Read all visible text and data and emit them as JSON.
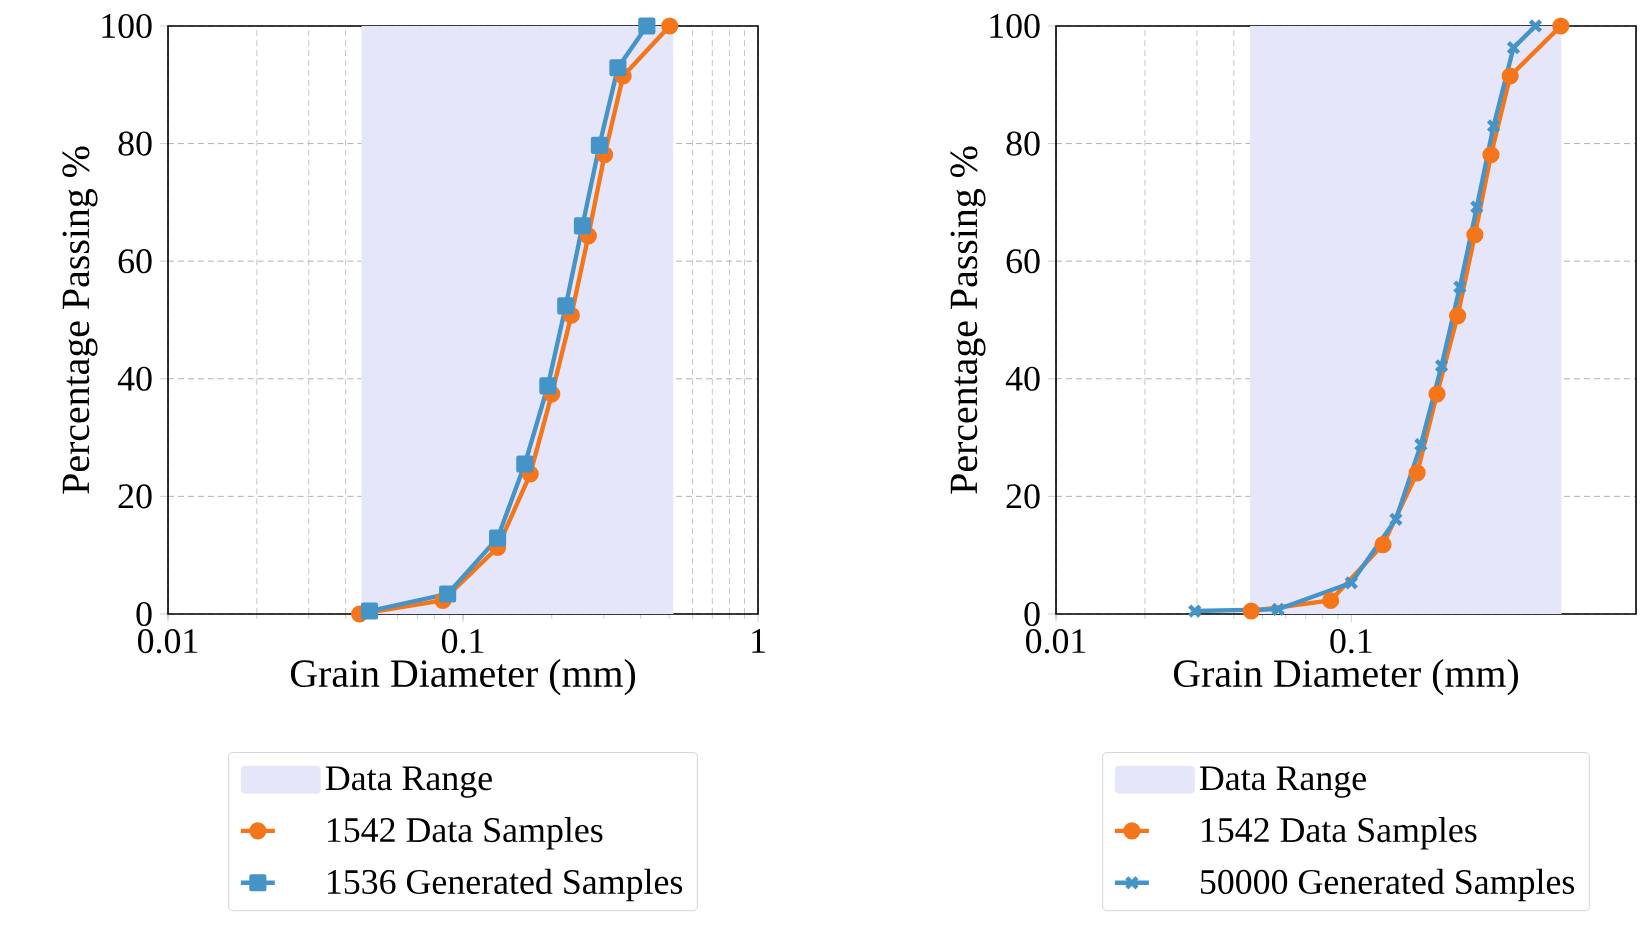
{
  "chart_data": [
    {
      "type": "line",
      "xlabel": "Grain Diameter (mm)",
      "ylabel": "Percentage Passing %",
      "log": "x",
      "grid": true,
      "legend": "bottom",
      "xlim": [
        0.01,
        1
      ],
      "xticks": [
        0.01,
        0.1,
        1
      ],
      "ylim": [
        0,
        100
      ],
      "yticks": [
        0,
        20,
        40,
        60,
        80,
        100
      ],
      "bands": [
        {
          "axis": "x",
          "from": 0.0453,
          "to": 0.516,
          "label": "Data Range",
          "color": "#e6e6fa"
        }
      ],
      "series": [
        {
          "name": "1542 Data Samples",
          "color": "#f5761a",
          "marker": "circle",
          "x": [
            0.0446,
            0.0855,
            0.131,
            0.169,
            0.2,
            0.233,
            0.266,
            0.302,
            0.349,
            0.502
          ],
          "values": [
            0,
            2.3,
            11.3,
            23.8,
            37.4,
            50.8,
            64.3,
            78.1,
            91.5,
            100
          ]
        },
        {
          "name": "1536 Generated Samples",
          "color": "#4594c8",
          "marker": "square",
          "x": [
            0.0482,
            0.0887,
            0.131,
            0.162,
            0.194,
            0.223,
            0.254,
            0.29,
            0.335,
            0.42
          ],
          "values": [
            0.5,
            3.4,
            12.9,
            25.5,
            38.8,
            52.4,
            66,
            79.7,
            92.9,
            100
          ]
        }
      ]
    },
    {
      "type": "line",
      "xlabel": "Grain Diameter (mm)",
      "ylabel": "Percentage Passing %",
      "log": "x",
      "grid": true,
      "legend": "bottom",
      "xlim": [
        0.01,
        0.92
      ],
      "xticks": [
        0.01,
        0.1
      ],
      "ylim": [
        0,
        100
      ],
      "yticks": [
        0,
        20,
        40,
        60,
        80,
        100
      ],
      "bands": [
        {
          "axis": "x",
          "from": 0.0454,
          "to": 0.514,
          "label": "Data Range",
          "color": "#e6e6fa"
        }
      ],
      "series": [
        {
          "name": "1542 Data Samples",
          "color": "#f5761a",
          "marker": "circle",
          "x": [
            0.0458,
            0.0851,
            0.128,
            0.167,
            0.195,
            0.229,
            0.262,
            0.297,
            0.345,
            0.512
          ],
          "values": [
            0.5,
            2.3,
            11.8,
            24,
            37.4,
            50.7,
            64.5,
            78.1,
            91.5,
            100
          ]
        },
        {
          "name": "50000 Generated Samples",
          "color": "#4594c8",
          "marker": "cross",
          "x": [
            0.0295,
            0.0565,
            0.1,
            0.1415,
            0.172,
            0.202,
            0.233,
            0.266,
            0.303,
            0.354,
            0.42
          ],
          "values": [
            0.5,
            0.8,
            5.3,
            16.1,
            28.8,
            42.2,
            55.6,
            69.2,
            83,
            96.3,
            100
          ]
        }
      ]
    }
  ]
}
